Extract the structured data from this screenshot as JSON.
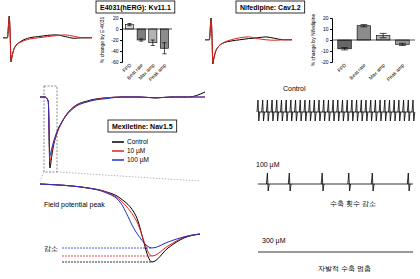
{
  "chart_data": [
    {
      "type": "bar",
      "title": "E4031(hERG): Kv11.1",
      "ylabel": "% change by E-4031",
      "categories": [
        "FPD",
        "Beat rate",
        "Max amp",
        "Peak amp"
      ],
      "values": [
        8,
        -20,
        -25,
        -35
      ],
      "errors": [
        2,
        2,
        5,
        10
      ],
      "colors": [
        "#d9d9d9",
        "#7f7f7f",
        "#b3b3b3",
        "#8c8c8c"
      ],
      "ylim": [
        -60,
        20
      ],
      "yticks": [
        -60,
        -40,
        -20,
        0,
        20
      ]
    },
    {
      "type": "bar",
      "title": "Nifedipine: Cav1.2",
      "ylabel": "% change by Nifedipine",
      "categories": [
        "FPD",
        "Beat rate",
        "Max amp",
        "Peak amp"
      ],
      "values": [
        -8,
        13,
        4,
        -4
      ],
      "errors": [
        1,
        1,
        2,
        1
      ],
      "colors": [
        "#666666",
        "#8c8c8c",
        "#b3b3b3",
        "#999999"
      ],
      "ylim": [
        -20,
        20
      ],
      "yticks": [
        -20,
        -10,
        0,
        10,
        20
      ]
    },
    {
      "type": "line",
      "tick_labels": false,
      "x": [
        0,
        5,
        7,
        8,
        9,
        10,
        12,
        15,
        20,
        30,
        40,
        50,
        60,
        70,
        80,
        90,
        100
      ],
      "series": [
        {
          "color": "#000000",
          "values": [
            0,
            0,
            0.9,
            0.2,
            -1.0,
            -0.8,
            -0.5,
            -0.3,
            -0.15,
            0,
            0.05,
            0.1,
            0.12,
            0.05,
            -0.02,
            0,
            0
          ]
        },
        {
          "color": "#e0231c",
          "values": [
            0,
            0,
            0.85,
            0.2,
            -0.95,
            -0.8,
            -0.5,
            -0.3,
            -0.18,
            -0.05,
            0,
            0.05,
            0.09,
            0.12,
            0.06,
            0,
            0
          ]
        }
      ]
    },
    {
      "type": "line",
      "tick_labels": false,
      "x": [
        0,
        5,
        7,
        8,
        9,
        10,
        12,
        15,
        20,
        30,
        40,
        50,
        60,
        70,
        80,
        90,
        100
      ],
      "series": [
        {
          "color": "#000000",
          "values": [
            0,
            0,
            0.9,
            0.2,
            -1.0,
            -0.8,
            -0.5,
            -0.3,
            -0.15,
            -0.05,
            0,
            0.05,
            0.08,
            0.12,
            0.06,
            0,
            0
          ]
        },
        {
          "color": "#e0231c",
          "values": [
            0,
            0,
            0.85,
            0.2,
            -0.95,
            -0.8,
            -0.5,
            -0.3,
            -0.15,
            0,
            0.08,
            0.12,
            0.05,
            0,
            -0.02,
            0,
            0
          ]
        }
      ]
    },
    {
      "type": "line",
      "tick_labels": false,
      "title": "Mexiletine: Nav1.5",
      "legend": "center",
      "x": [
        0,
        3,
        5,
        6,
        7,
        8,
        10,
        14,
        20,
        30,
        40,
        50,
        60,
        70,
        80,
        90,
        100
      ],
      "series": [
        {
          "name": "Control",
          "color": "#000000",
          "values": [
            0.7,
            0.7,
            0.6,
            -1.0,
            -0.75,
            -0.5,
            -0.2,
            0.15,
            0.45,
            0.62,
            0.68,
            0.7,
            0.7,
            0.68,
            0.7,
            0.7,
            0.82
          ]
        },
        {
          "name": "10 µM",
          "color": "#e0231c",
          "values": [
            0.7,
            0.7,
            0.6,
            -0.85,
            -0.65,
            -0.45,
            -0.2,
            0.15,
            0.45,
            0.6,
            0.68,
            0.7,
            0.7,
            0.68,
            0.7,
            0.7,
            0.7
          ]
        },
        {
          "name": "100 µM",
          "color": "#2233cc",
          "values": [
            0.7,
            0.7,
            0.6,
            -0.7,
            -0.55,
            -0.4,
            -0.15,
            0.15,
            0.42,
            0.6,
            0.66,
            0.7,
            0.7,
            0.68,
            0.7,
            0.7,
            0.7
          ]
        }
      ]
    },
    {
      "type": "line",
      "tick_labels": false,
      "annotations": [
        "Field potential peak",
        "감소"
      ],
      "x": [
        0,
        1,
        2,
        3,
        4,
        5,
        6,
        7,
        8,
        9,
        10
      ],
      "series": [
        {
          "color": "#000000",
          "values": [
            1.0,
            0.98,
            0.95,
            0.9,
            0.82,
            0.65,
            0.2,
            -0.95,
            -0.6,
            -0.35,
            -0.25
          ]
        },
        {
          "color": "#e0231c",
          "values": [
            1.0,
            0.98,
            0.95,
            0.9,
            0.82,
            0.6,
            0.1,
            -0.8,
            -0.55,
            -0.33,
            -0.25
          ]
        },
        {
          "color": "#2233cc",
          "values": [
            1.0,
            0.98,
            0.95,
            0.9,
            0.8,
            0.55,
            -0.2,
            -0.6,
            -0.45,
            -0.32,
            -0.25
          ]
        }
      ]
    },
    {
      "type": "spike_train",
      "tick_labels": false,
      "color": "#000000",
      "annotations": [
        "수축 횟수 감소",
        "자발적 수축 멈춤"
      ],
      "series": [
        {
          "name": "Control",
          "x": [
            0,
            3,
            6,
            9,
            12,
            15,
            18,
            21,
            24,
            27,
            30,
            33,
            36,
            39,
            42,
            45,
            48,
            51,
            54,
            57,
            60,
            63,
            66,
            69,
            72,
            75,
            78,
            81,
            84,
            87,
            90,
            93,
            96,
            99
          ]
        },
        {
          "name": "100 µM",
          "x": [
            6,
            20,
            41,
            58,
            73,
            96
          ]
        },
        {
          "name": "300 µM",
          "x": []
        }
      ]
    }
  ]
}
